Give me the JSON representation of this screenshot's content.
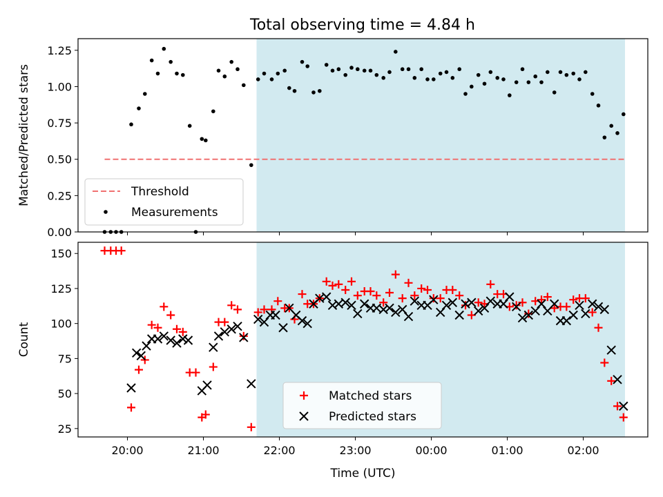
{
  "figure": {
    "title": "Total observing time = 4.84 h"
  },
  "chart_data": [
    {
      "type": "scatter",
      "panel": "top",
      "ylabel": "Matched/Predicted stars",
      "xlabel": "",
      "ylim": [
        0,
        1.33
      ],
      "yticks": [
        0.0,
        0.25,
        0.5,
        0.75,
        1.0,
        1.25
      ],
      "ytick_labels": [
        "0.00",
        "0.25",
        "0.50",
        "0.75",
        "1.00",
        "1.25"
      ],
      "grid": false,
      "legend_position": "lower-left",
      "shaded_region": {
        "start_hours": 21.7,
        "end_hours": 26.55,
        "color": "#d2eaf0"
      },
      "threshold": {
        "name": "Threshold",
        "value": 0.5,
        "color": "#f07070",
        "x_start_hours": 19.7,
        "x_end_hours": 26.55
      },
      "series": [
        {
          "name": "Measurements",
          "marker": "dot",
          "color": "#000000",
          "x": [
            19.7,
            19.78,
            19.85,
            19.92,
            20.05,
            20.15,
            20.23,
            20.32,
            20.4,
            20.48,
            20.57,
            20.65,
            20.73,
            20.82,
            20.9,
            20.98,
            21.03,
            21.13,
            21.2,
            21.28,
            21.37,
            21.45,
            21.53,
            21.63,
            21.72,
            21.8,
            21.9,
            21.98,
            22.07,
            22.13,
            22.2,
            22.3,
            22.37,
            22.45,
            22.53,
            22.62,
            22.7,
            22.78,
            22.87,
            22.95,
            23.03,
            23.12,
            23.2,
            23.28,
            23.37,
            23.45,
            23.53,
            23.62,
            23.7,
            23.78,
            23.87,
            23.95,
            24.03,
            24.12,
            24.2,
            24.28,
            24.37,
            24.45,
            24.53,
            24.62,
            24.7,
            24.78,
            24.87,
            24.95,
            25.03,
            25.12,
            25.2,
            25.28,
            25.37,
            25.45,
            25.53,
            25.62,
            25.7,
            25.78,
            25.87,
            25.95,
            26.03,
            26.12,
            26.2,
            26.28,
            26.37,
            26.45,
            26.53
          ],
          "y": [
            0.0,
            0.0,
            0.0,
            0.0,
            0.74,
            0.85,
            0.95,
            1.18,
            1.09,
            1.26,
            1.17,
            1.09,
            1.08,
            0.73,
            0.0,
            0.64,
            0.63,
            0.83,
            1.11,
            1.07,
            1.17,
            1.12,
            1.01,
            0.46,
            1.05,
            1.09,
            1.05,
            1.09,
            1.11,
            0.99,
            0.97,
            1.17,
            1.14,
            0.96,
            0.97,
            1.15,
            1.11,
            1.12,
            1.08,
            1.13,
            1.12,
            1.11,
            1.11,
            1.08,
            1.06,
            1.1,
            1.24,
            1.12,
            1.12,
            1.06,
            1.12,
            1.05,
            1.05,
            1.09,
            1.1,
            1.06,
            1.12,
            0.95,
            1.0,
            1.08,
            1.02,
            1.1,
            1.06,
            1.05,
            0.94,
            1.03,
            1.12,
            1.03,
            1.07,
            1.03,
            1.1,
            0.96,
            1.1,
            1.08,
            1.09,
            1.05,
            1.1,
            0.95,
            0.87,
            0.65,
            0.73,
            0.68,
            0.81
          ]
        }
      ]
    },
    {
      "type": "scatter",
      "panel": "bottom",
      "ylabel": "Count",
      "xlabel": "Time (UTC)",
      "ylim": [
        19,
        158
      ],
      "yticks": [
        25,
        50,
        75,
        100,
        125,
        150
      ],
      "ytick_labels": [
        "25",
        "50",
        "75",
        "100",
        "125",
        "150"
      ],
      "xlim_hours": [
        19.35,
        26.85
      ],
      "xticks_hours": [
        20,
        21,
        22,
        23,
        24,
        25,
        26
      ],
      "xtick_labels": [
        "20:00",
        "21:00",
        "22:00",
        "23:00",
        "00:00",
        "01:00",
        "02:00"
      ],
      "grid": false,
      "legend_position": "lower-center",
      "shaded_region": {
        "start_hours": 21.7,
        "end_hours": 26.55,
        "color": "#d2eaf0"
      },
      "series": [
        {
          "name": "Matched stars",
          "marker": "plus",
          "color": "#ff0000",
          "x": [
            19.7,
            19.78,
            19.85,
            19.92,
            20.05,
            20.15,
            20.23,
            20.32,
            20.4,
            20.48,
            20.57,
            20.65,
            20.73,
            20.82,
            20.9,
            20.98,
            21.03,
            21.13,
            21.2,
            21.28,
            21.37,
            21.45,
            21.53,
            21.63,
            21.72,
            21.8,
            21.9,
            21.98,
            22.07,
            22.13,
            22.2,
            22.3,
            22.37,
            22.45,
            22.53,
            22.62,
            22.7,
            22.78,
            22.87,
            22.95,
            23.03,
            23.12,
            23.2,
            23.28,
            23.37,
            23.45,
            23.53,
            23.62,
            23.7,
            23.78,
            23.87,
            23.95,
            24.03,
            24.12,
            24.2,
            24.28,
            24.37,
            24.45,
            24.53,
            24.62,
            24.7,
            24.78,
            24.87,
            24.95,
            25.03,
            25.12,
            25.2,
            25.28,
            25.37,
            25.45,
            25.53,
            25.62,
            25.7,
            25.78,
            25.87,
            25.95,
            26.03,
            26.12,
            26.2,
            26.28,
            26.37,
            26.45,
            26.53
          ],
          "y": [
            152,
            152,
            152,
            152,
            40,
            67,
            74,
            99,
            97,
            112,
            106,
            96,
            94,
            65,
            65,
            33,
            35,
            69,
            101,
            101,
            113,
            110,
            91,
            26,
            108,
            110,
            110,
            116,
            111,
            111,
            103,
            121,
            114,
            114,
            118,
            130,
            127,
            128,
            124,
            130,
            120,
            123,
            123,
            120,
            115,
            122,
            135,
            118,
            129,
            120,
            125,
            124,
            118,
            118,
            124,
            124,
            120,
            113,
            106,
            115,
            114,
            128,
            121,
            121,
            112,
            113,
            115,
            107,
            116,
            117,
            119,
            111,
            112,
            112,
            117,
            118,
            118,
            108,
            97,
            72,
            59,
            41,
            33
          ]
        },
        {
          "name": "Predicted stars",
          "marker": "x",
          "color": "#000000",
          "x": [
            20.05,
            20.12,
            20.18,
            20.25,
            20.32,
            20.4,
            20.48,
            20.57,
            20.65,
            20.73,
            20.8,
            20.98,
            21.05,
            21.13,
            21.2,
            21.28,
            21.37,
            21.45,
            21.53,
            21.63,
            21.72,
            21.8,
            21.88,
            21.95,
            22.05,
            22.13,
            22.22,
            22.3,
            22.37,
            22.45,
            22.53,
            22.62,
            22.7,
            22.78,
            22.87,
            22.95,
            23.03,
            23.12,
            23.2,
            23.28,
            23.37,
            23.45,
            23.53,
            23.62,
            23.7,
            23.78,
            23.87,
            23.95,
            24.03,
            24.12,
            24.2,
            24.28,
            24.37,
            24.45,
            24.53,
            24.62,
            24.7,
            24.78,
            24.87,
            24.95,
            25.03,
            25.12,
            25.2,
            25.28,
            25.37,
            25.45,
            25.53,
            25.62,
            25.7,
            25.78,
            25.87,
            25.95,
            26.03,
            26.12,
            26.2,
            26.28,
            26.37,
            26.45,
            26.53
          ],
          "y": [
            54,
            79,
            77,
            84,
            89,
            89,
            91,
            88,
            86,
            89,
            88,
            52,
            56,
            83,
            91,
            94,
            96,
            98,
            90,
            57,
            103,
            101,
            106,
            106,
            97,
            111,
            106,
            102,
            100,
            114,
            118,
            119,
            113,
            114,
            115,
            113,
            107,
            114,
            111,
            111,
            110,
            111,
            108,
            110,
            105,
            116,
            113,
            113,
            117,
            108,
            113,
            115,
            106,
            114,
            115,
            109,
            111,
            116,
            114,
            114,
            119,
            112,
            104,
            106,
            109,
            114,
            109,
            114,
            102,
            102,
            106,
            113,
            107,
            114,
            112,
            110,
            81,
            60,
            41
          ]
        }
      ]
    }
  ]
}
